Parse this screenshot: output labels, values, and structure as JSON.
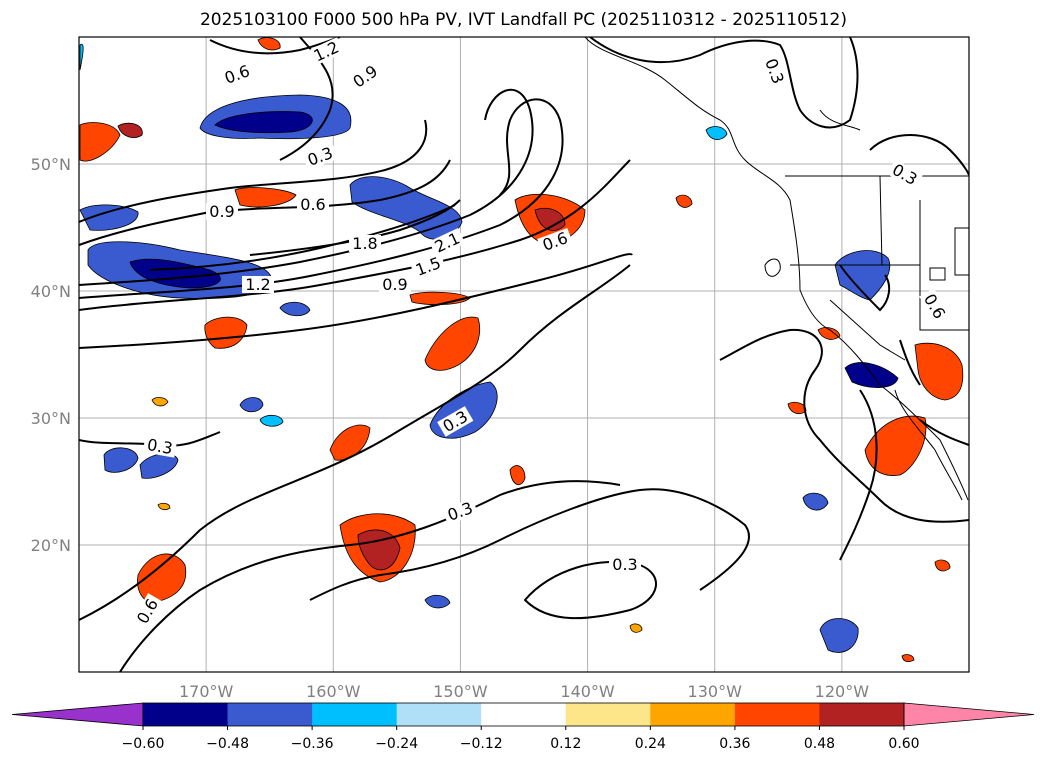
{
  "title": "2025103100 F000 500 hPa PV, IVT Landfall PC (2025110312 - 2025110512)",
  "map": {
    "lon_range": [
      -180,
      -110
    ],
    "lat_range": [
      10,
      60
    ],
    "lon_ticks": [
      -170,
      -160,
      -150,
      -140,
      -130,
      -120
    ],
    "lat_ticks": [
      20,
      30,
      40,
      50
    ],
    "lon_tick_labels": [
      "170°W",
      "160°W",
      "150°W",
      "140°W",
      "130°W",
      "120°W"
    ],
    "lat_tick_labels": [
      "20°N",
      "30°N",
      "40°N",
      "50°N"
    ],
    "grid": true,
    "contour_labels": [
      "1.2",
      "0.6",
      "0.9",
      "0.3",
      "0.9",
      "0.6",
      "1.8",
      "2.1",
      "1.5",
      "0.9",
      "1.2",
      "0.6",
      "0.3",
      "0.3",
      "0.3",
      "0.3",
      "0.6",
      "0.3",
      "0.3",
      "0.6"
    ]
  },
  "colorbar": {
    "levels": [
      "−0.60",
      "−0.48",
      "−0.36",
      "−0.24",
      "−0.12",
      "0.12",
      "0.24",
      "0.36",
      "0.48",
      "0.60"
    ],
    "colors": [
      "#9932cc",
      "#00008b",
      "#3a5bd0",
      "#00bfff",
      "#b0e0f8",
      "#ffffff",
      "#fde68a",
      "#ffa500",
      "#ff4500",
      "#b22222",
      "#ff85a8"
    ],
    "extend": "both"
  }
}
